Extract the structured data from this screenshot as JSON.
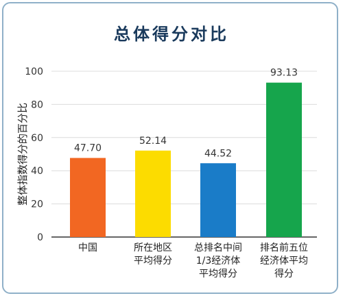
{
  "chart_data": {
    "type": "bar",
    "title": "总体得分对比",
    "ylabel": "整体指数得分的百分比",
    "xlabel": "",
    "ylim": [
      0,
      100
    ],
    "yticks": [
      0,
      20,
      40,
      60,
      80,
      100
    ],
    "grid": true,
    "categories": [
      [
        "中国"
      ],
      [
        "所在地区",
        "平均得分"
      ],
      [
        "总排名中间",
        "1/3经济体",
        "平均得分"
      ],
      [
        "排名前五位",
        "经济体平均",
        "得分"
      ]
    ],
    "values": [
      47.7,
      52.14,
      44.52,
      93.13
    ],
    "value_labels": [
      "47.70",
      "52.14",
      "44.52",
      "93.13"
    ],
    "colors": [
      "#f26722",
      "#fcdc00",
      "#1a7cc8",
      "#16a54c"
    ]
  }
}
